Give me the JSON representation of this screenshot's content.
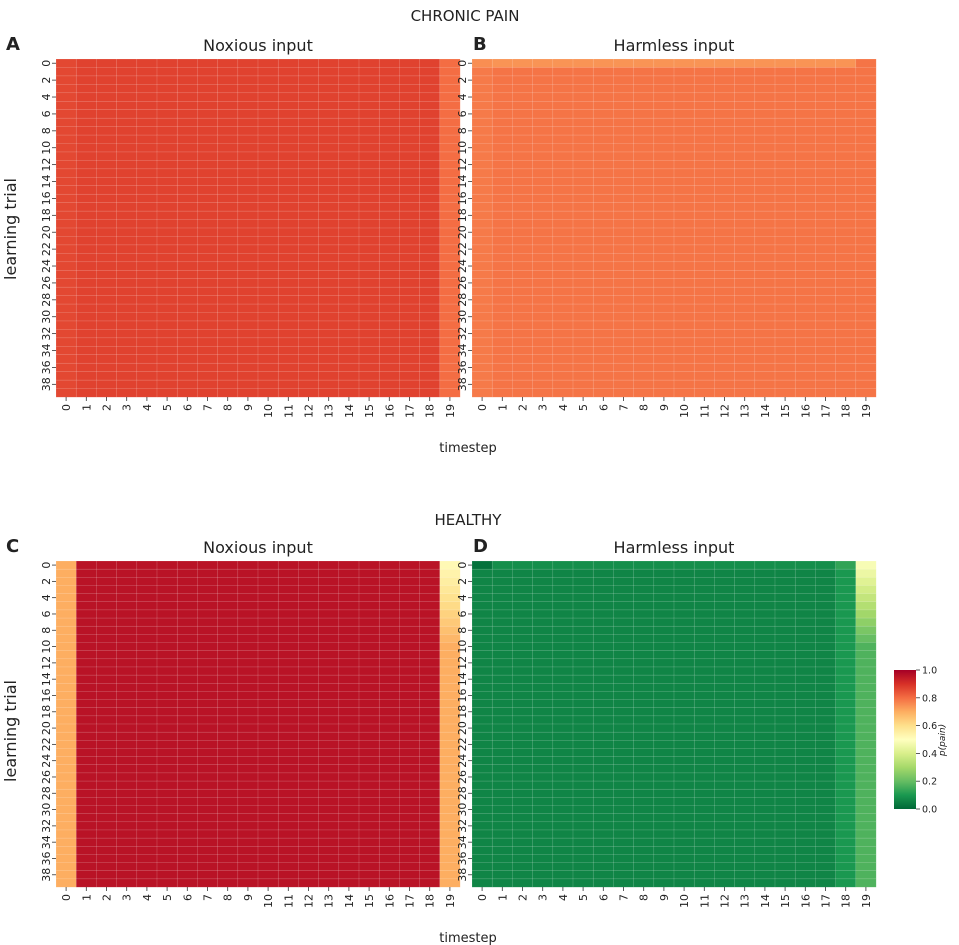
{
  "section_titles": {
    "top": "CHRONIC PAIN",
    "bottom": "HEALTHY"
  },
  "panel_letters": [
    "A",
    "B",
    "C",
    "D"
  ],
  "axes": {
    "ylabel": "learning trial",
    "xlabel": "timestep"
  },
  "colorbar": {
    "label": "p(pain)",
    "ticks": [
      "0.0",
      "0.2",
      "0.4",
      "0.6",
      "0.8",
      "1.0"
    ],
    "range": [
      0,
      1
    ],
    "colormap": "RdYlGn_r",
    "colormap_stops": [
      [
        0.0,
        "#006837"
      ],
      [
        0.1,
        "#1a9850"
      ],
      [
        0.2,
        "#66bd63"
      ],
      [
        0.3,
        "#a6d96a"
      ],
      [
        0.4,
        "#d9ef8b"
      ],
      [
        0.5,
        "#ffffbf"
      ],
      [
        0.6,
        "#fee08b"
      ],
      [
        0.7,
        "#fdae61"
      ],
      [
        0.8,
        "#f46d43"
      ],
      [
        0.9,
        "#d73027"
      ],
      [
        1.0,
        "#a50026"
      ]
    ]
  },
  "chart_data": [
    {
      "type": "heatmap",
      "panel": "A",
      "title": "Noxious input",
      "group": "CHRONIC PAIN",
      "xlabel": "timestep",
      "ylabel": "learning trial",
      "x_ticks": [
        "0",
        "1",
        "2",
        "3",
        "4",
        "5",
        "6",
        "7",
        "8",
        "9",
        "10",
        "11",
        "12",
        "13",
        "14",
        "15",
        "16",
        "17",
        "18",
        "19"
      ],
      "y_ticks": [
        "0",
        "2",
        "4",
        "6",
        "8",
        "10",
        "12",
        "14",
        "16",
        "18",
        "20",
        "22",
        "24",
        "26",
        "28",
        "30",
        "32",
        "34",
        "36",
        "38"
      ],
      "rows": 40,
      "column_values": [
        0.86,
        0.87,
        0.87,
        0.87,
        0.87,
        0.87,
        0.87,
        0.87,
        0.87,
        0.87,
        0.87,
        0.87,
        0.87,
        0.87,
        0.87,
        0.87,
        0.87,
        0.87,
        0.87,
        0.8
      ]
    },
    {
      "type": "heatmap",
      "panel": "B",
      "title": "Harmless input",
      "group": "CHRONIC PAIN",
      "xlabel": "timestep",
      "ylabel": "learning trial",
      "x_ticks": [
        "0",
        "1",
        "2",
        "3",
        "4",
        "5",
        "6",
        "7",
        "8",
        "9",
        "10",
        "11",
        "12",
        "13",
        "14",
        "15",
        "16",
        "17",
        "18",
        "19"
      ],
      "y_ticks": [
        "0",
        "2",
        "4",
        "6",
        "8",
        "10",
        "12",
        "14",
        "16",
        "18",
        "20",
        "22",
        "24",
        "26",
        "28",
        "30",
        "32",
        "34",
        "36",
        "38"
      ],
      "rows": 40,
      "first_row_values": [
        0.75,
        0.74,
        0.74,
        0.74,
        0.74,
        0.74,
        0.74,
        0.74,
        0.74,
        0.74,
        0.74,
        0.74,
        0.74,
        0.74,
        0.74,
        0.74,
        0.74,
        0.74,
        0.74,
        0.79
      ],
      "column_values": [
        0.78,
        0.79,
        0.79,
        0.79,
        0.79,
        0.79,
        0.79,
        0.79,
        0.79,
        0.79,
        0.79,
        0.79,
        0.79,
        0.79,
        0.79,
        0.79,
        0.79,
        0.79,
        0.79,
        0.79
      ]
    },
    {
      "type": "heatmap",
      "panel": "C",
      "title": "Noxious input",
      "group": "HEALTHY",
      "xlabel": "timestep",
      "ylabel": "learning trial",
      "x_ticks": [
        "0",
        "1",
        "2",
        "3",
        "4",
        "5",
        "6",
        "7",
        "8",
        "9",
        "10",
        "11",
        "12",
        "13",
        "14",
        "15",
        "16",
        "17",
        "18",
        "19"
      ],
      "y_ticks": [
        "0",
        "2",
        "4",
        "6",
        "8",
        "10",
        "12",
        "14",
        "16",
        "18",
        "20",
        "22",
        "24",
        "26",
        "28",
        "30",
        "32",
        "34",
        "36",
        "38"
      ],
      "rows": 40,
      "first_row_values": [
        0.7,
        0.96,
        0.96,
        0.96,
        0.96,
        0.96,
        0.96,
        0.96,
        0.96,
        0.96,
        0.96,
        0.96,
        0.96,
        0.96,
        0.96,
        0.96,
        0.96,
        0.96,
        0.96,
        0.52
      ],
      "column_values": [
        0.7,
        0.96,
        0.96,
        0.96,
        0.96,
        0.96,
        0.96,
        0.96,
        0.96,
        0.96,
        0.96,
        0.96,
        0.96,
        0.96,
        0.96,
        0.96,
        0.96,
        0.96,
        0.96,
        0.7
      ],
      "last_column_gradient_rows": 10
    },
    {
      "type": "heatmap",
      "panel": "D",
      "title": "Harmless input",
      "group": "HEALTHY",
      "xlabel": "timestep",
      "ylabel": "learning trial",
      "x_ticks": [
        "0",
        "1",
        "2",
        "3",
        "4",
        "5",
        "6",
        "7",
        "8",
        "9",
        "10",
        "11",
        "12",
        "13",
        "14",
        "15",
        "16",
        "17",
        "18",
        "19"
      ],
      "y_ticks": [
        "0",
        "2",
        "4",
        "6",
        "8",
        "10",
        "12",
        "14",
        "16",
        "18",
        "20",
        "22",
        "24",
        "26",
        "28",
        "30",
        "32",
        "34",
        "36",
        "38"
      ],
      "rows": 40,
      "first_row_values": [
        0.02,
        0.08,
        0.08,
        0.08,
        0.08,
        0.08,
        0.08,
        0.08,
        0.08,
        0.08,
        0.08,
        0.08,
        0.08,
        0.08,
        0.08,
        0.08,
        0.08,
        0.08,
        0.13,
        0.48
      ],
      "column_values": [
        0.06,
        0.06,
        0.06,
        0.06,
        0.06,
        0.06,
        0.06,
        0.06,
        0.06,
        0.06,
        0.06,
        0.06,
        0.06,
        0.06,
        0.06,
        0.06,
        0.06,
        0.06,
        0.1,
        0.17
      ],
      "last_column_gradient_rows": 10
    }
  ]
}
